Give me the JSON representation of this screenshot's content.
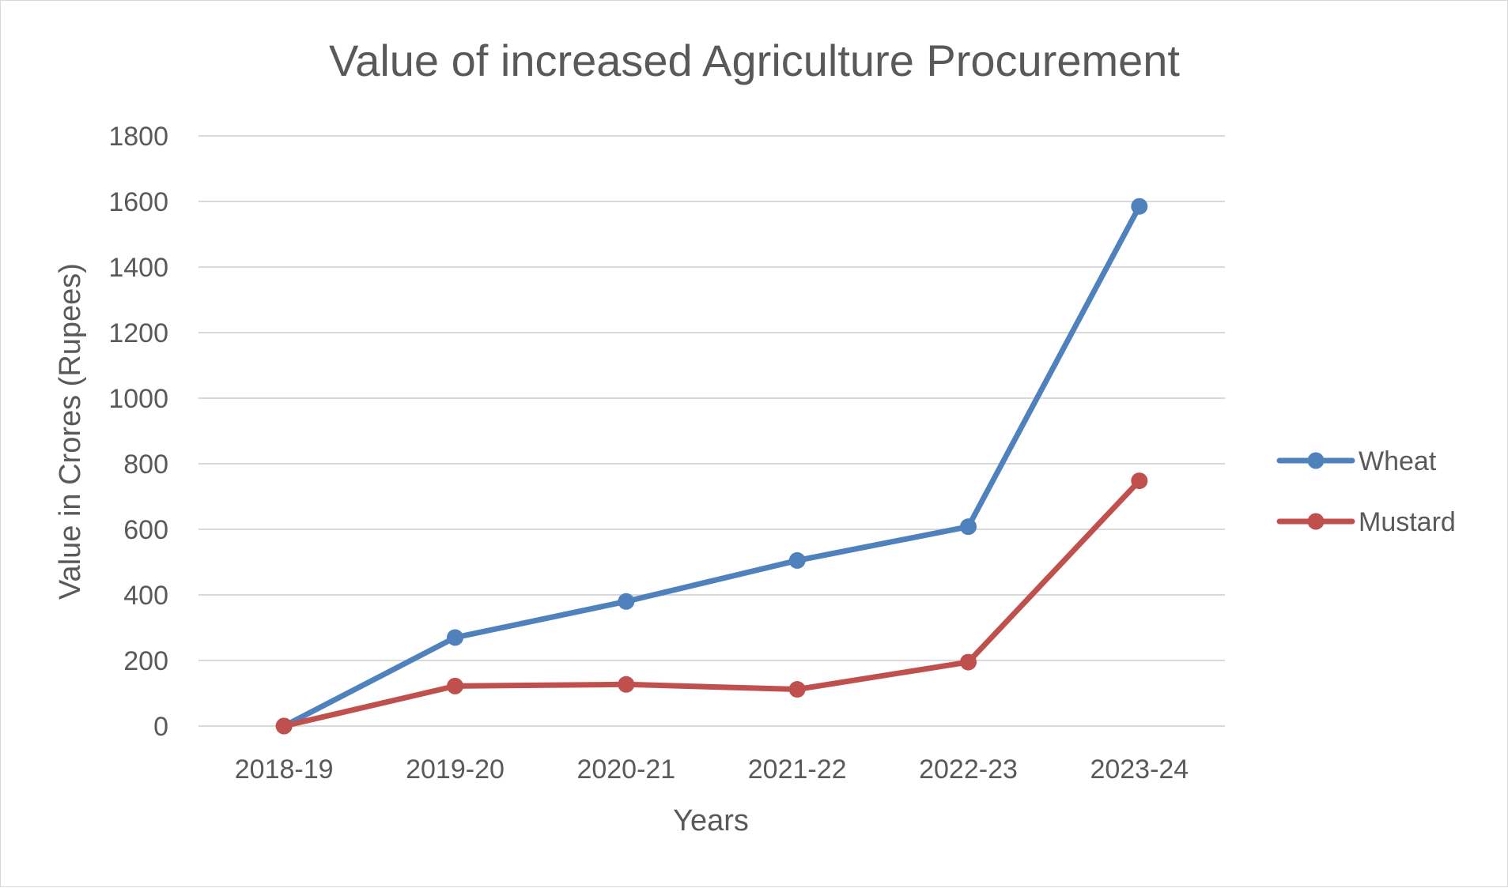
{
  "chart_data": {
    "type": "line",
    "title": "Value of increased Agriculture Procurement",
    "xlabel": "Years",
    "ylabel": "Value in Crores (Rupees)",
    "categories": [
      "2018-19",
      "2019-20",
      "2020-21",
      "2021-22",
      "2022-23",
      "2023-24"
    ],
    "ylim": [
      0,
      1800
    ],
    "yticks": [
      "0",
      "200",
      "400",
      "600",
      "800",
      "1000",
      "1200",
      "1400",
      "1600",
      "1800"
    ],
    "grid": true,
    "legend_position": "right",
    "series": [
      {
        "name": "Wheat",
        "color": "#4f81bd",
        "values": [
          0,
          270,
          380,
          505,
          608,
          1585
        ]
      },
      {
        "name": "Mustard",
        "color": "#c0504d",
        "values": [
          0,
          122,
          127,
          112,
          195,
          748
        ]
      }
    ]
  }
}
